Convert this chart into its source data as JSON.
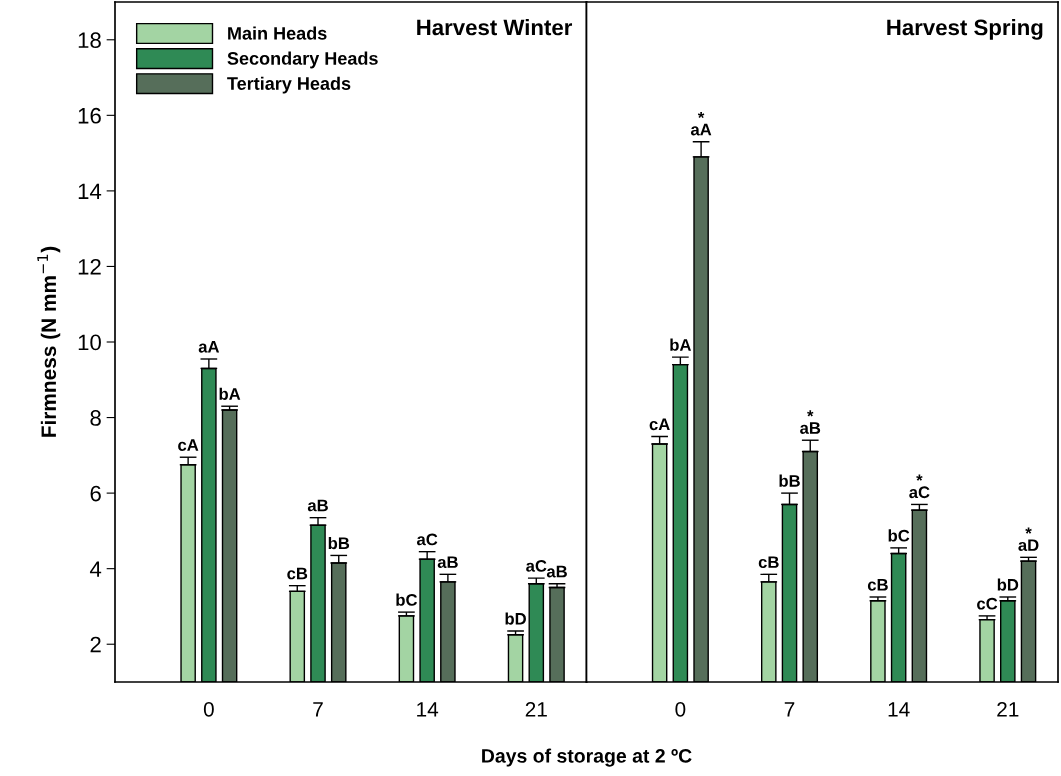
{
  "chart_data": [
    {
      "type": "bar",
      "title": "Harvest Winter",
      "xlabel": "Days of storage at 2 ºC",
      "ylabel": "Firmness (N mm$^{−1}$)",
      "categories": [
        "0",
        "7",
        "14",
        "21"
      ],
      "ylim": [
        1,
        19
      ],
      "yticks": [
        2,
        4,
        6,
        8,
        10,
        12,
        14,
        16,
        18
      ],
      "legend": "top left",
      "grid": false,
      "series": [
        {
          "name": "Main Heads",
          "color": "#a3d4a3",
          "values": [
            6.75,
            3.4,
            2.75,
            2.25
          ],
          "errors": [
            0.2,
            0.15,
            0.1,
            0.1
          ],
          "value_labels": [
            "cA",
            "cB",
            "bC",
            "bD"
          ]
        },
        {
          "name": "Secondary Heads",
          "color": "#2f8a55",
          "values": [
            9.3,
            5.15,
            4.25,
            3.6
          ],
          "errors": [
            0.25,
            0.2,
            0.2,
            0.15
          ],
          "value_labels": [
            "aA",
            "aB",
            "aC",
            "aC"
          ]
        },
        {
          "name": "Tertiary Heads",
          "color": "#566e5a",
          "values": [
            8.2,
            4.15,
            3.65,
            3.5
          ],
          "errors": [
            0.1,
            0.2,
            0.2,
            0.1
          ],
          "value_labels": [
            "bA",
            "bB",
            "aB",
            "aB"
          ]
        }
      ]
    },
    {
      "type": "bar",
      "title": "Harvest Spring",
      "categories": [
        "0",
        "7",
        "14",
        "21"
      ],
      "ylim": [
        1,
        19
      ],
      "tick_labels": "x",
      "grid": false,
      "series": [
        {
          "color": "#a3d4a3",
          "values": [
            7.3,
            3.65,
            3.15,
            2.65
          ],
          "errors": [
            0.2,
            0.2,
            0.1,
            0.1
          ],
          "value_labels": [
            "cA",
            "cB",
            "cB",
            "cC"
          ]
        },
        {
          "color": "#2f8a55",
          "values": [
            9.4,
            5.7,
            4.4,
            3.15
          ],
          "errors": [
            0.2,
            0.3,
            0.15,
            0.1
          ],
          "value_labels": [
            "bA",
            "bB",
            "bC",
            "bD"
          ]
        },
        {
          "color": "#566e5a",
          "values": [
            14.9,
            7.1,
            5.55,
            4.2
          ],
          "errors": [
            0.4,
            0.3,
            0.15,
            0.1
          ],
          "value_labels": [
            "*\naA",
            "*\naB",
            "*\naC",
            "*\naD"
          ]
        }
      ]
    }
  ]
}
